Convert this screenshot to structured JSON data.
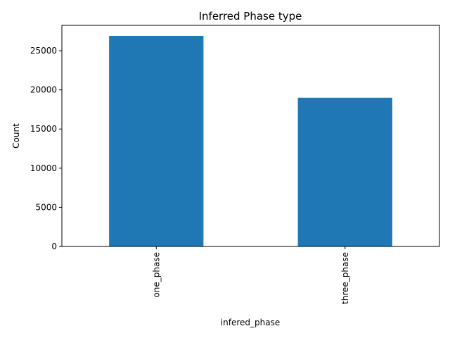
{
  "chart_data": {
    "type": "bar",
    "title": "Inferred Phase type",
    "xlabel": "infered_phase",
    "ylabel": "Count",
    "categories": [
      "one_phase",
      "three_phase"
    ],
    "values": [
      26900,
      19000
    ],
    "ylim": [
      0,
      28245
    ],
    "yticks": [
      0,
      5000,
      10000,
      15000,
      20000,
      25000
    ],
    "bar_color": "#1f77b4",
    "grid": false,
    "legend": "none"
  }
}
